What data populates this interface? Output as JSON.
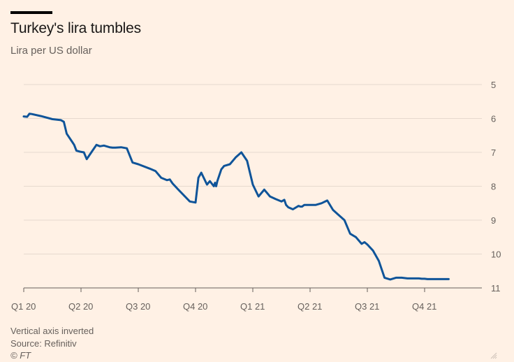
{
  "header": {
    "title": "Turkey's lira tumbles",
    "subtitle": "Lira per US dollar"
  },
  "footer": {
    "note": "Vertical axis inverted",
    "source": "Source: Refinitiv",
    "copyright": "© FT"
  },
  "colors": {
    "background": "#fff1e5",
    "line": "#0f5499",
    "gridline": "#e6d9ce",
    "text": "#66605c"
  },
  "icons": {
    "corner": "resize-grip-icon"
  },
  "chart_data": {
    "type": "line",
    "title": "Turkey's lira tumbles",
    "ylabel": "Lira per US dollar",
    "y_inverted": true,
    "ylim": [
      5,
      11
    ],
    "yticks": [
      5,
      6,
      7,
      8,
      9,
      10,
      11
    ],
    "xlim": [
      0,
      8
    ],
    "xticks": [
      0,
      1,
      2,
      3,
      4,
      5,
      6,
      7
    ],
    "xtick_labels": [
      "Q1 20",
      "Q2 20",
      "Q3 20",
      "Q4 20",
      "Q1 21",
      "Q2 21",
      "Q3 21",
      "Q4 21"
    ],
    "grid": true,
    "series": [
      {
        "x": [
          0,
          0.06,
          0.1,
          0.14,
          0.3,
          0.5,
          0.65,
          0.7,
          0.75,
          0.85,
          0.88,
          0.92,
          0.98,
          1.05,
          1.1,
          1.2,
          1.27,
          1.33,
          1.4,
          1.5,
          1.55,
          1.6,
          1.7,
          1.8,
          1.9,
          2.0,
          2.2,
          2.3,
          2.4,
          2.5,
          2.55,
          2.6,
          2.7,
          2.9,
          3.0,
          3.05,
          3.1,
          3.2,
          3.25,
          3.32,
          3.34,
          3.36,
          3.38,
          3.45,
          3.5,
          3.6,
          3.7,
          3.8,
          3.9,
          4.0,
          4.1,
          4.2,
          4.3,
          4.4,
          4.5,
          4.55,
          4.58,
          4.62,
          4.7,
          4.8,
          4.83,
          4.86,
          4.9,
          4.95,
          5.0,
          5.1,
          5.2,
          5.3,
          5.4,
          5.5,
          5.6,
          5.7,
          5.8,
          5.9,
          5.95,
          6.0,
          6.1,
          6.2,
          6.3,
          6.4,
          6.5,
          6.6,
          6.7,
          6.8,
          6.9,
          6.95,
          7.0,
          7.05,
          7.1,
          7.15,
          7.2,
          7.25,
          7.3,
          7.35,
          7.38,
          7.42
        ],
        "values": [
          5.94,
          5.95,
          5.86,
          5.87,
          5.93,
          6.02,
          6.05,
          6.1,
          6.45,
          6.7,
          6.78,
          6.95,
          6.98,
          7.0,
          7.2,
          6.95,
          6.78,
          6.82,
          6.8,
          6.85,
          6.86,
          6.86,
          6.85,
          6.88,
          7.3,
          7.35,
          7.48,
          7.55,
          7.75,
          7.82,
          7.8,
          7.92,
          8.1,
          8.45,
          8.48,
          7.75,
          7.6,
          7.95,
          7.85,
          8.0,
          7.9,
          8.0,
          7.85,
          7.5,
          7.4,
          7.35,
          7.15,
          7.0,
          7.25,
          7.95,
          8.3,
          8.1,
          8.3,
          8.38,
          8.45,
          8.4,
          8.55,
          8.62,
          8.68,
          8.58,
          8.6,
          8.6,
          8.55,
          8.55,
          8.55,
          8.55,
          8.5,
          8.42,
          8.7,
          8.85,
          9.0,
          9.4,
          9.5,
          9.7,
          9.65,
          9.72,
          9.9,
          10.2,
          10.7,
          10.75,
          10.7,
          10.7,
          10.72,
          10.72,
          10.72,
          10.73,
          10.73,
          10.74,
          10.74,
          10.74,
          10.74,
          10.74,
          10.74,
          10.74,
          10.74,
          10.74
        ]
      }
    ]
  }
}
